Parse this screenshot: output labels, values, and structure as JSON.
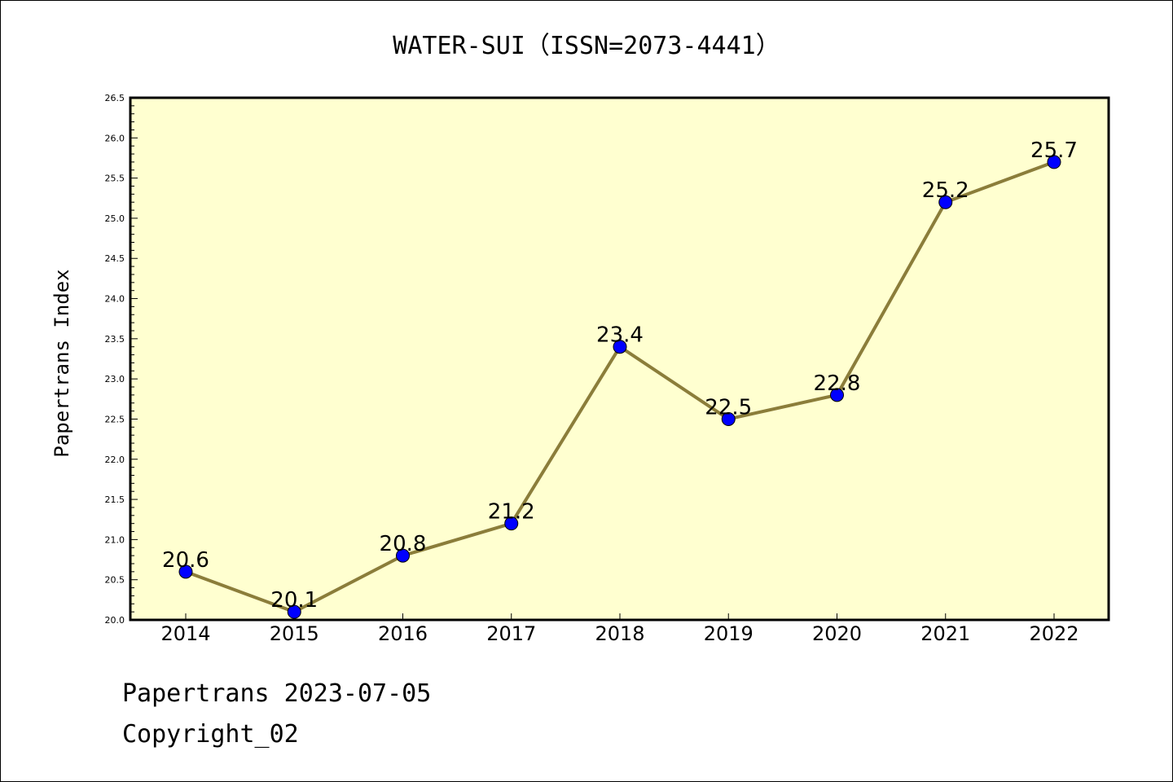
{
  "chart_data": {
    "type": "line",
    "title": "WATER-SUI（ISSN=2073-4441）",
    "ylabel": "Papertrans Index",
    "xlabel": "",
    "categories": [
      "2014",
      "2015",
      "2016",
      "2017",
      "2018",
      "2019",
      "2020",
      "2021",
      "2022"
    ],
    "values": [
      20.6,
      20.1,
      20.8,
      21.2,
      23.4,
      22.5,
      22.8,
      25.2,
      25.7
    ],
    "data_labels": [
      "20.6",
      "20.1",
      "20.8",
      "21.2",
      "23.4",
      "22.5",
      "22.8",
      "25.2",
      "25.7"
    ],
    "ylim": [
      20.0,
      26.5
    ],
    "yticks": [
      "20.0",
      "20.5",
      "21.0",
      "21.5",
      "22.0",
      "22.5",
      "23.0",
      "23.5",
      "24.0",
      "24.5",
      "25.0",
      "25.5",
      "26.0",
      "26.5"
    ],
    "colors": {
      "line": "#8b7d3a",
      "marker": "#0000ff",
      "plot_bg": "#ffffd0"
    },
    "grid": false,
    "legend": "none"
  },
  "footer": {
    "line1": "Papertrans 2023-07-05",
    "line2": "Copyright_02"
  }
}
